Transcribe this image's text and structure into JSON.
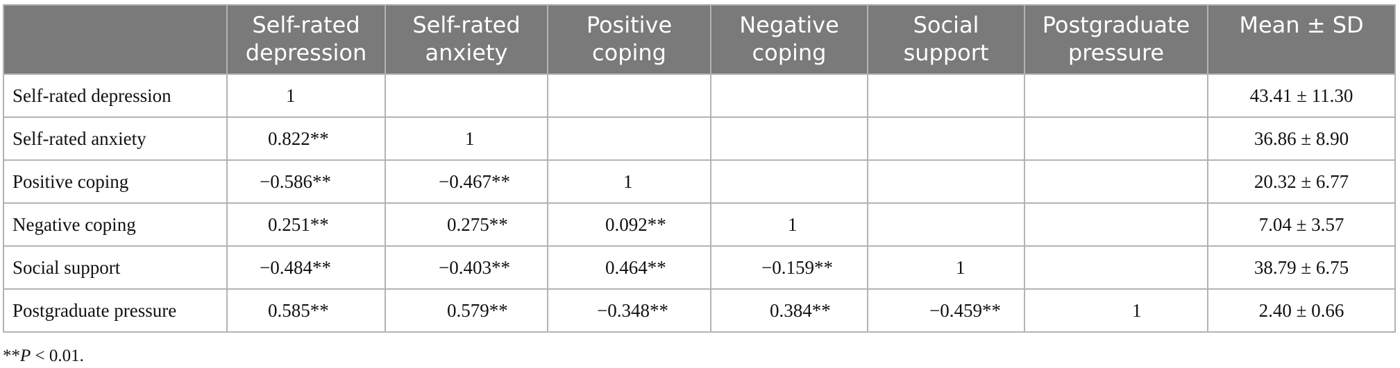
{
  "table": {
    "columns": [
      "",
      "Self-rated depression",
      "Self-rated anxiety",
      "Positive coping",
      "Negative coping",
      "Social support",
      "Postgraduate pressure",
      "Mean ± SD"
    ],
    "header_lines": [
      [
        "",
        ""
      ],
      [
        "Self-rated",
        "depression"
      ],
      [
        "Self-rated",
        "anxiety"
      ],
      [
        "Positive",
        "coping"
      ],
      [
        "Negative",
        "coping"
      ],
      [
        "Social",
        "support"
      ],
      [
        "Postgraduate",
        "pressure"
      ],
      [
        "Mean ± SD",
        ""
      ]
    ],
    "rows": [
      {
        "label": "Self-rated depression",
        "cells": [
          "1",
          "",
          "",
          "",
          "",
          ""
        ],
        "mean": "43.41 ± 11.30"
      },
      {
        "label": "Self-rated anxiety",
        "cells": [
          "0.822**",
          "1",
          "",
          "",
          "",
          ""
        ],
        "mean": "36.86 ± 8.90"
      },
      {
        "label": "Positive coping",
        "cells": [
          "−0.586**",
          "−0.467**",
          "1",
          "",
          "",
          ""
        ],
        "mean": "20.32 ± 6.77"
      },
      {
        "label": "Negative coping",
        "cells": [
          "0.251**",
          "0.275**",
          "0.092**",
          "1",
          "",
          ""
        ],
        "mean": "7.04 ± 3.57"
      },
      {
        "label": "Social support",
        "cells": [
          "−0.484**",
          "−0.403**",
          "0.464**",
          "−0.159**",
          "1",
          ""
        ],
        "mean": "38.79 ± 6.75"
      },
      {
        "label": "Postgraduate pressure",
        "cells": [
          "0.585**",
          "0.579**",
          "−0.348**",
          "0.384**",
          "−0.459**",
          "1"
        ],
        "mean": "2.40 ± 0.66"
      }
    ]
  },
  "footnote": {
    "stars": "**",
    "p": "P",
    "rest": " < 0.01."
  },
  "colors": {
    "header_bg": "#7a7a7a",
    "header_text": "#ffffff",
    "grid": "#b3b3b3"
  }
}
